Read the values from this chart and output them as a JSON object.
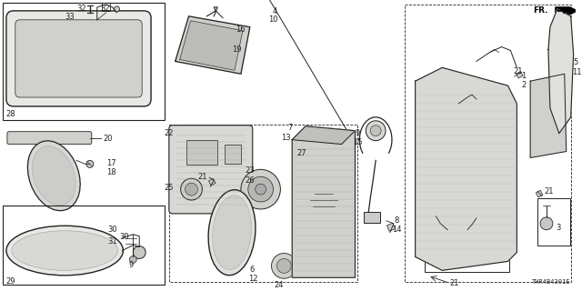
{
  "bg": "#f5f5f0",
  "lc": "#222222",
  "tc": "#222222",
  "figsize": [
    6.4,
    3.2
  ],
  "dpi": 100,
  "diagram_code": "THR4B4301E"
}
